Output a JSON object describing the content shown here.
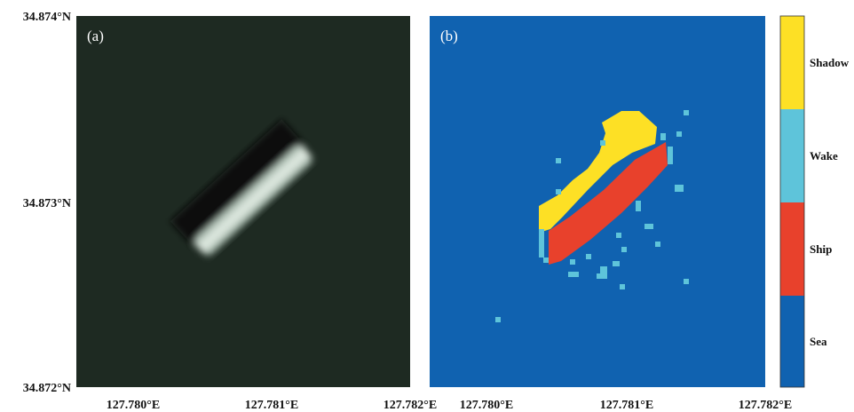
{
  "panels": [
    {
      "label": "(a)",
      "x_ticks": [
        "127.780°E",
        "127.781°E",
        "127.782°E"
      ]
    },
    {
      "label": "(b)",
      "x_ticks": [
        "127.780°E",
        "127.781°E",
        "127.782°E"
      ]
    }
  ],
  "y_ticks": [
    "34.874°N",
    "34.873°N",
    "34.872°N"
  ],
  "legend": [
    "Shadow",
    "Wake",
    "Ship",
    "Sea"
  ]
}
